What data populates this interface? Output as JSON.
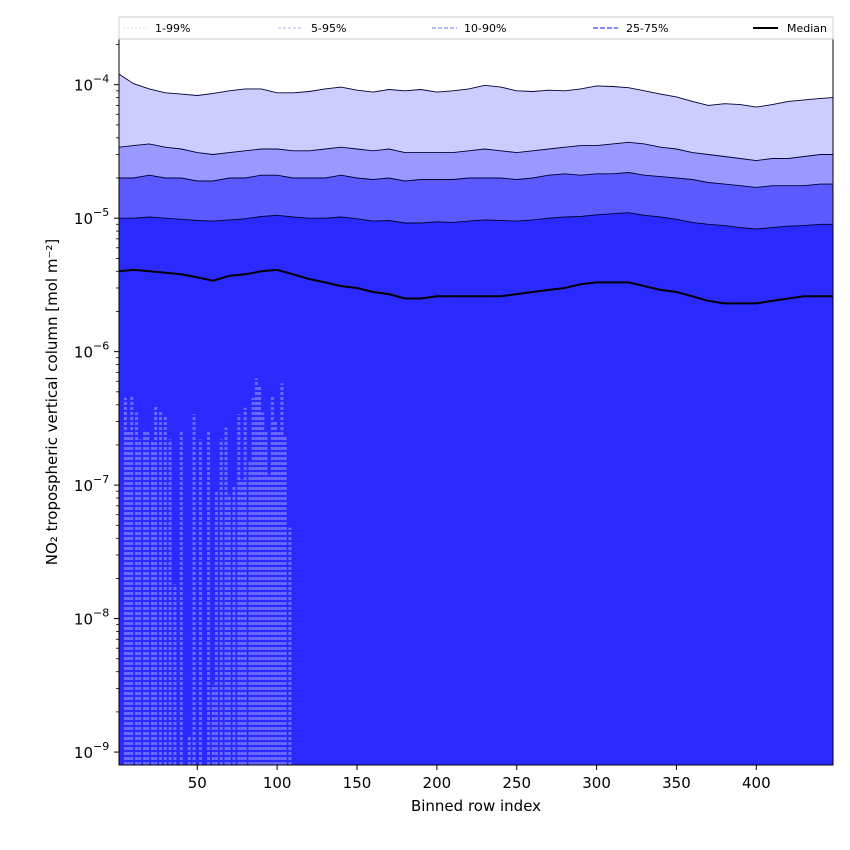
{
  "chart_data": {
    "type": "area",
    "xlabel": "Binned row index",
    "ylabel": "NO₂ tropospheric vertical column [mol m⁻²]",
    "yscale": "log",
    "xlim": [
      1,
      448
    ],
    "ylim": [
      8e-10,
      0.00022
    ],
    "xticks": [
      50,
      100,
      150,
      200,
      250,
      300,
      350,
      400
    ],
    "yticks": [
      {
        "value": 1e-09,
        "mant": "10",
        "exp": "−9"
      },
      {
        "value": 1e-08,
        "mant": "10",
        "exp": "−8"
      },
      {
        "value": 1e-07,
        "mant": "10",
        "exp": "−7"
      },
      {
        "value": 1e-06,
        "mant": "10",
        "exp": "−6"
      },
      {
        "value": 1e-05,
        "mant": "10",
        "exp": "−5"
      },
      {
        "value": 0.0001,
        "mant": "10",
        "exp": "−4"
      }
    ],
    "legend": {
      "placement": "top",
      "entries": [
        "1-99%",
        "5-95%",
        "10-90%",
        "25-75%",
        "Median"
      ]
    },
    "band_colors": [
      "#ccccff",
      "#9999ff",
      "#5a5aff",
      "#2a2aff"
    ],
    "band_labels": [
      "1-99%",
      "5-95%",
      "10-90%",
      "25-75%"
    ],
    "median_color": "#000000",
    "series": [
      {
        "name": "99%",
        "x": [
          1,
          10,
          20,
          30,
          40,
          50,
          60,
          70,
          80,
          90,
          100,
          110,
          120,
          130,
          140,
          150,
          160,
          170,
          180,
          190,
          200,
          210,
          220,
          230,
          240,
          250,
          260,
          270,
          280,
          290,
          300,
          310,
          320,
          330,
          340,
          350,
          360,
          370,
          380,
          390,
          400,
          410,
          420,
          430,
          440,
          448
        ],
        "values": [
          0.00012,
          0.000102,
          9.3e-05,
          8.7e-05,
          8.5e-05,
          8.3e-05,
          8.6e-05,
          9e-05,
          9.3e-05,
          9.3e-05,
          8.7e-05,
          8.7e-05,
          8.9e-05,
          9.3e-05,
          9.6e-05,
          9.1e-05,
          8.8e-05,
          9.2e-05,
          9e-05,
          9.2e-05,
          8.8e-05,
          9e-05,
          9.3e-05,
          9.9e-05,
          9.6e-05,
          9e-05,
          8.9e-05,
          9.1e-05,
          9e-05,
          9.3e-05,
          9.8e-05,
          9.7e-05,
          9.5e-05,
          9e-05,
          8.5e-05,
          8.1e-05,
          7.5e-05,
          7e-05,
          7.2e-05,
          7.1e-05,
          6.8e-05,
          7.1e-05,
          7.5e-05,
          7.7e-05,
          7.9e-05,
          8e-05
        ]
      },
      {
        "name": "95%",
        "x": [
          1,
          10,
          20,
          30,
          40,
          50,
          60,
          70,
          80,
          90,
          100,
          110,
          120,
          130,
          140,
          150,
          160,
          170,
          180,
          190,
          200,
          210,
          220,
          230,
          240,
          250,
          260,
          270,
          280,
          290,
          300,
          310,
          320,
          330,
          340,
          350,
          360,
          370,
          380,
          390,
          400,
          410,
          420,
          430,
          440,
          448
        ],
        "values": [
          3.4e-05,
          3.5e-05,
          3.6e-05,
          3.4e-05,
          3.3e-05,
          3.1e-05,
          3e-05,
          3.1e-05,
          3.2e-05,
          3.3e-05,
          3.3e-05,
          3.2e-05,
          3.2e-05,
          3.3e-05,
          3.4e-05,
          3.3e-05,
          3.2e-05,
          3.3e-05,
          3.1e-05,
          3.1e-05,
          3.1e-05,
          3.1e-05,
          3.2e-05,
          3.3e-05,
          3.2e-05,
          3.1e-05,
          3.2e-05,
          3.3e-05,
          3.4e-05,
          3.5e-05,
          3.5e-05,
          3.6e-05,
          3.7e-05,
          3.6e-05,
          3.4e-05,
          3.3e-05,
          3.1e-05,
          3e-05,
          2.9e-05,
          2.8e-05,
          2.7e-05,
          2.8e-05,
          2.8e-05,
          2.9e-05,
          3e-05,
          3e-05
        ]
      },
      {
        "name": "90%",
        "x": [
          1,
          10,
          20,
          30,
          40,
          50,
          60,
          70,
          80,
          90,
          100,
          110,
          120,
          130,
          140,
          150,
          160,
          170,
          180,
          190,
          200,
          210,
          220,
          230,
          240,
          250,
          260,
          270,
          280,
          290,
          300,
          310,
          320,
          330,
          340,
          350,
          360,
          370,
          380,
          390,
          400,
          410,
          420,
          430,
          440,
          448
        ],
        "values": [
          2e-05,
          2e-05,
          2.1e-05,
          2e-05,
          2e-05,
          1.9e-05,
          1.9e-05,
          2e-05,
          2e-05,
          2.1e-05,
          2.1e-05,
          2e-05,
          2e-05,
          2e-05,
          2.1e-05,
          2e-05,
          1.95e-05,
          2e-05,
          1.9e-05,
          1.95e-05,
          1.95e-05,
          1.95e-05,
          2e-05,
          2e-05,
          2e-05,
          1.95e-05,
          2e-05,
          2.1e-05,
          2.15e-05,
          2.1e-05,
          2.15e-05,
          2.15e-05,
          2.2e-05,
          2.1e-05,
          2.05e-05,
          2e-05,
          1.95e-05,
          1.85e-05,
          1.8e-05,
          1.75e-05,
          1.7e-05,
          1.75e-05,
          1.75e-05,
          1.75e-05,
          1.8e-05,
          1.8e-05
        ]
      },
      {
        "name": "75%",
        "x": [
          1,
          10,
          20,
          30,
          40,
          50,
          60,
          70,
          80,
          90,
          100,
          110,
          120,
          130,
          140,
          150,
          160,
          170,
          180,
          190,
          200,
          210,
          220,
          230,
          240,
          250,
          260,
          270,
          280,
          290,
          300,
          310,
          320,
          330,
          340,
          350,
          360,
          370,
          380,
          390,
          400,
          410,
          420,
          430,
          440,
          448
        ],
        "values": [
          1e-05,
          1e-05,
          1.02e-05,
          1e-05,
          9.8e-06,
          9.6e-06,
          9.5e-06,
          9.7e-06,
          9.9e-06,
          1.03e-05,
          1.05e-05,
          1.02e-05,
          1e-05,
          1e-05,
          1.02e-05,
          9.9e-06,
          9.5e-06,
          9.6e-06,
          9.2e-06,
          9.2e-06,
          9.4e-06,
          9.3e-06,
          9.5e-06,
          9.7e-06,
          9.6e-06,
          9.5e-06,
          9.7e-06,
          1e-05,
          1.02e-05,
          1.03e-05,
          1.06e-05,
          1.08e-05,
          1.1e-05,
          1.05e-05,
          1.02e-05,
          9.8e-06,
          9.3e-06,
          9e-06,
          8.8e-06,
          8.5e-06,
          8.3e-06,
          8.5e-06,
          8.7e-06,
          8.8e-06,
          9e-06,
          9e-06
        ]
      },
      {
        "name": "Median",
        "x": [
          1,
          10,
          20,
          30,
          40,
          50,
          60,
          70,
          80,
          90,
          100,
          110,
          120,
          130,
          140,
          150,
          160,
          170,
          180,
          190,
          200,
          210,
          220,
          230,
          240,
          250,
          260,
          270,
          280,
          290,
          300,
          310,
          320,
          330,
          340,
          350,
          360,
          370,
          380,
          390,
          400,
          410,
          420,
          430,
          440,
          448
        ],
        "values": [
          4e-06,
          4.1e-06,
          4e-06,
          3.9e-06,
          3.8e-06,
          3.6e-06,
          3.4e-06,
          3.7e-06,
          3.8e-06,
          4e-06,
          4.1e-06,
          3.8e-06,
          3.5e-06,
          3.3e-06,
          3.1e-06,
          3e-06,
          2.8e-06,
          2.7e-06,
          2.5e-06,
          2.5e-06,
          2.6e-06,
          2.6e-06,
          2.6e-06,
          2.6e-06,
          2.6e-06,
          2.7e-06,
          2.8e-06,
          2.9e-06,
          3e-06,
          3.2e-06,
          3.3e-06,
          3.3e-06,
          3.3e-06,
          3.1e-06,
          2.9e-06,
          2.8e-06,
          2.6e-06,
          2.4e-06,
          2.3e-06,
          2.3e-06,
          2.3e-06,
          2.4e-06,
          2.5e-06,
          2.6e-06,
          2.6e-06,
          2.6e-06
        ]
      },
      {
        "name": "1%",
        "x": [
          5,
          7,
          9,
          12,
          14,
          17,
          19,
          22,
          24,
          27,
          30,
          33,
          36,
          40,
          45,
          48,
          52,
          57,
          60,
          62,
          65,
          68,
          70,
          73,
          76,
          78,
          80,
          83,
          85,
          87,
          89,
          91,
          93,
          95,
          97,
          99,
          101,
          103,
          105,
          108
        ],
        "values": [
          4.5e-07,
          2.5e-07,
          4.7e-07,
          3.5e-07,
          2.2e-07,
          2.6e-07,
          2.5e-07,
          2.1e-07,
          4e-07,
          3.6e-07,
          3.3e-07,
          2.2e-07,
          1.8e-08,
          2.5e-07,
          1.3e-09,
          3.4e-07,
          2.2e-07,
          2.6e-07,
          3.2e-09,
          9e-08,
          2.2e-07,
          2.7e-07,
          8.5e-08,
          1e-07,
          3.4e-07,
          1.1e-07,
          3.8e-07,
          1.5e-07,
          4.5e-07,
          6.3e-07,
          5.5e-07,
          3.5e-07,
          2.5e-07,
          1.2e-07,
          4.7e-07,
          3e-07,
          2.5e-07,
          5.8e-07,
          2.3e-07,
          4.8e-08
        ]
      }
    ]
  }
}
